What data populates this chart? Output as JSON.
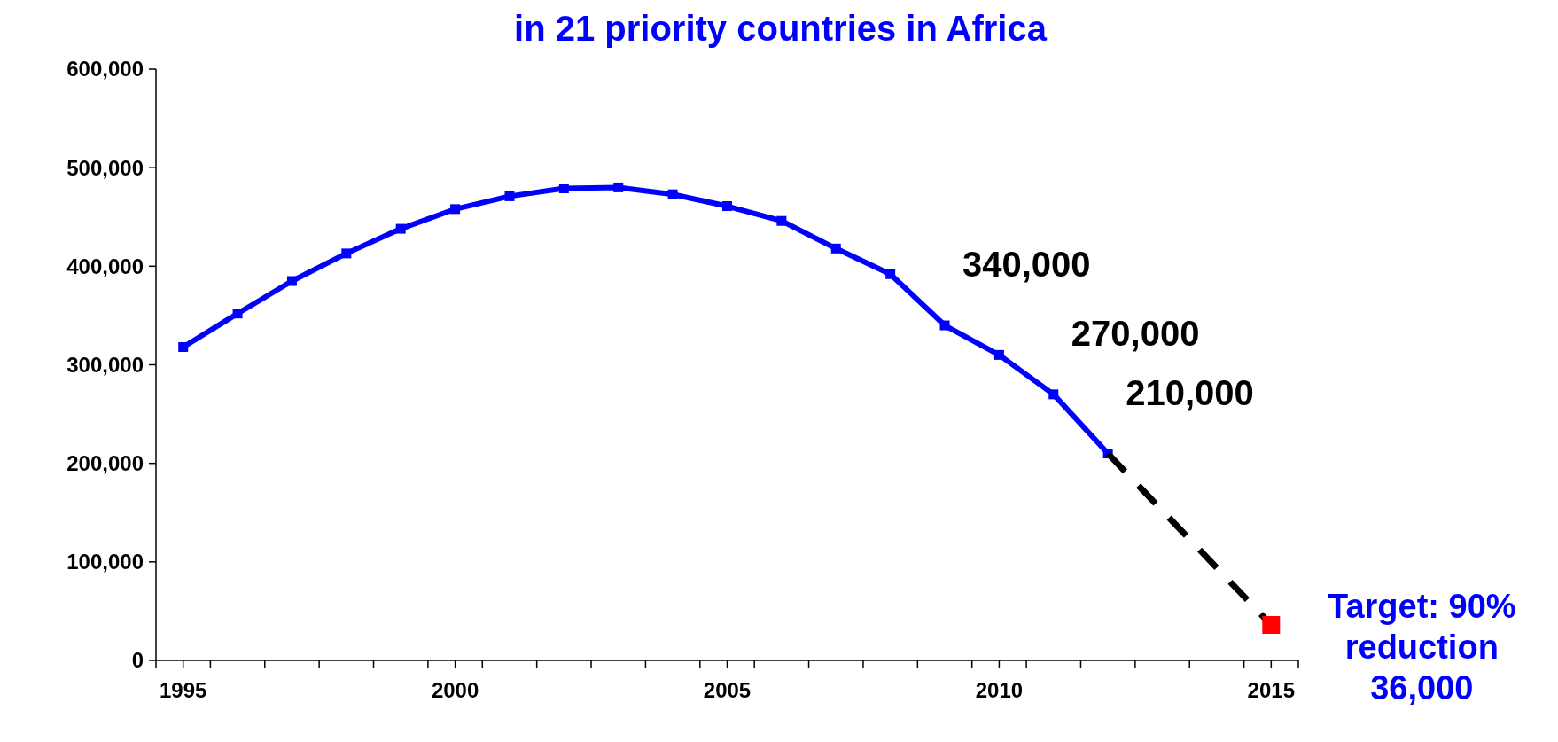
{
  "chart_data": {
    "type": "line",
    "title": "in 21 priority countries in Africa",
    "xlim": [
      1994.5,
      2015.5
    ],
    "xticks": [
      1995,
      2000,
      2005,
      2010,
      2015,
      {
        "value": 1994.5,
        "label": null
      },
      {
        "value": 1995.5,
        "label": null
      },
      {
        "value": 1996.5,
        "label": null
      },
      {
        "value": 1997.5,
        "label": null
      },
      {
        "value": 1998.5,
        "label": null
      },
      {
        "value": 1999.5,
        "label": null
      },
      {
        "value": 2000.5,
        "label": null
      },
      {
        "value": 2001.5,
        "label": null
      },
      {
        "value": 2002.5,
        "label": null
      },
      {
        "value": 2003.5,
        "label": null
      },
      {
        "value": 2004.5,
        "label": null
      },
      {
        "value": 2005.5,
        "label": null
      },
      {
        "value": 2006.5,
        "label": null
      },
      {
        "value": 2007.5,
        "label": null
      },
      {
        "value": 2008.5,
        "label": null
      },
      {
        "value": 2009.5,
        "label": null
      },
      {
        "value": 2010.5,
        "label": null
      },
      {
        "value": 2011.5,
        "label": null
      },
      {
        "value": 2012.5,
        "label": null
      },
      {
        "value": 2013.5,
        "label": null
      },
      {
        "value": 2014.5,
        "label": null
      },
      {
        "value": 2015.5,
        "label": null
      }
    ],
    "ylim": [
      0,
      600000
    ],
    "yticks": [
      0,
      {
        "value": 100000,
        "label": "100,000"
      },
      {
        "value": 200000,
        "label": "200,000"
      },
      {
        "value": 300000,
        "label": "300,000"
      },
      {
        "value": 400000,
        "label": "400,000"
      },
      {
        "value": 500000,
        "label": "500,000"
      },
      {
        "value": 600000,
        "label": "600,000"
      }
    ],
    "grid": false,
    "series": [
      {
        "color": "#0000ff",
        "marker": "square",
        "line_style": "solid",
        "x": [
          1995,
          1996,
          1997,
          1998,
          1999,
          2000,
          2001,
          2002,
          2003,
          2004,
          2005,
          2006,
          2007,
          2008,
          2009,
          2010,
          2011,
          2012
        ],
        "values": [
          318000,
          352000,
          385000,
          413000,
          438000,
          458000,
          471000,
          479000,
          480000,
          473000,
          461000,
          446000,
          418000,
          392000,
          340000,
          310000,
          270000,
          210000
        ]
      },
      {
        "color": "#000000",
        "marker": "none",
        "line_style": "dashed",
        "x": [
          2012,
          2015
        ],
        "values": [
          210000,
          36000
        ]
      },
      {
        "type": "scatter",
        "color": "#ff0000",
        "marker": "square",
        "x": [
          2015
        ],
        "values": [
          36000
        ]
      }
    ],
    "annotations": [
      {
        "text": "340,000",
        "x": 2009,
        "y": 340000
      },
      {
        "text": "270,000",
        "x": 2011,
        "y": 270000
      },
      {
        "text": "210,000",
        "x": 2012,
        "y": 210000
      },
      {
        "text": "Target: 90%\nreduction\n36,000",
        "x": 2015,
        "y": 36000
      }
    ]
  }
}
